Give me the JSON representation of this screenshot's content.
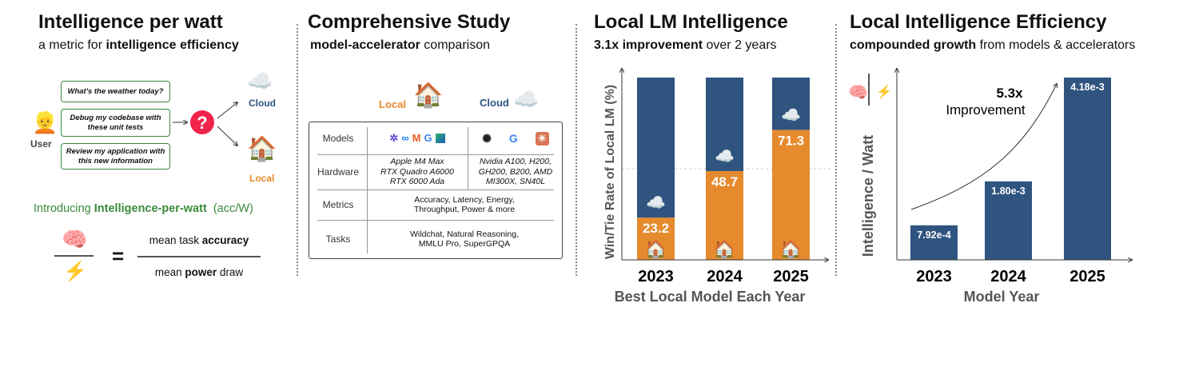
{
  "panel1": {
    "title": "Intelligence per watt",
    "subtitle_pre": "a metric for ",
    "subtitle_bold": "intelligence efficiency",
    "prompts": [
      "What's the weather today?",
      "Debug my codebase with these unit tests",
      "Review my application with this new information"
    ],
    "user_label": "User",
    "cloud_label": "Cloud",
    "local_label": "Local",
    "intro_pre": "Introducing ",
    "intro_bold": "Intelligence-per-watt",
    "intro_post": "  (acc/W)",
    "numerator_pre": "mean task ",
    "numerator_bold": "accuracy",
    "denominator_pre": "mean ",
    "denominator_bold": "power",
    "denominator_post": " draw",
    "equals": "="
  },
  "panel2": {
    "title": "Comprehensive Study",
    "subtitle_bold": "model-accelerator",
    "subtitle_post": " comparison",
    "local_label": "Local",
    "cloud_label": "Cloud",
    "rows": {
      "models": "Models",
      "hardware": "Hardware",
      "metrics": "Metrics",
      "tasks": "Tasks"
    },
    "hardware_local": "Apple M4 Max\nRTX Quadro A6000\nRTX 6000 Ada",
    "hardware_cloud": "Nvidia A100, H200,\nGH200, B200, AMD\nMI300X, SN40L",
    "metrics": "Accuracy, Latency, Energy,\nThroughput, Power & more",
    "tasks": "Wildchat, Natural Reasoning,\nMMLU Pro, SuperGPQA",
    "local_model_icons": [
      "qwen-logo",
      "meta-logo",
      "mistral-logo",
      "google-logo",
      "ibm-granite-logo"
    ],
    "cloud_model_icons": [
      "openai-logo",
      "google-logo",
      "anthropic-logo"
    ]
  },
  "chart_data": [
    {
      "type": "bar",
      "stacked": true,
      "title": "Local LM Intelligence",
      "subtitle_bold": "3.1x improvement",
      "subtitle_post": " over 2 years",
      "categories": [
        "2023",
        "2024",
        "2025"
      ],
      "series": [
        {
          "name": "Local",
          "values": [
            23.2,
            48.7,
            71.3
          ],
          "color": "#E68A2E"
        },
        {
          "name": "Cloud",
          "values": [
            76.8,
            51.3,
            28.7
          ],
          "color": "#2F5480"
        }
      ],
      "data_labels": [
        "23.2",
        "48.7",
        "71.3"
      ],
      "xlabel": "Best Local Model Each Year",
      "ylabel": "Win/Tie Rate of Local LM (%)",
      "ylim": [
        0,
        100
      ],
      "gridline": 50
    },
    {
      "type": "bar",
      "title": "Local Intelligence Efficiency",
      "subtitle_bold": "compounded growth",
      "subtitle_post": " from models & accelerators",
      "categories": [
        "2023",
        "2024",
        "2025"
      ],
      "values": [
        0.000792,
        0.0018,
        0.00418
      ],
      "data_labels": [
        "7.92e-4",
        "1.80e-3",
        "4.18e-3"
      ],
      "color": "#2F5480",
      "xlabel": "Model Year",
      "ylabel": "Intelligence / Watt",
      "ylim": [
        0,
        0.00418
      ],
      "annotation_bold": "5.3x",
      "annotation": "Improvement"
    }
  ]
}
